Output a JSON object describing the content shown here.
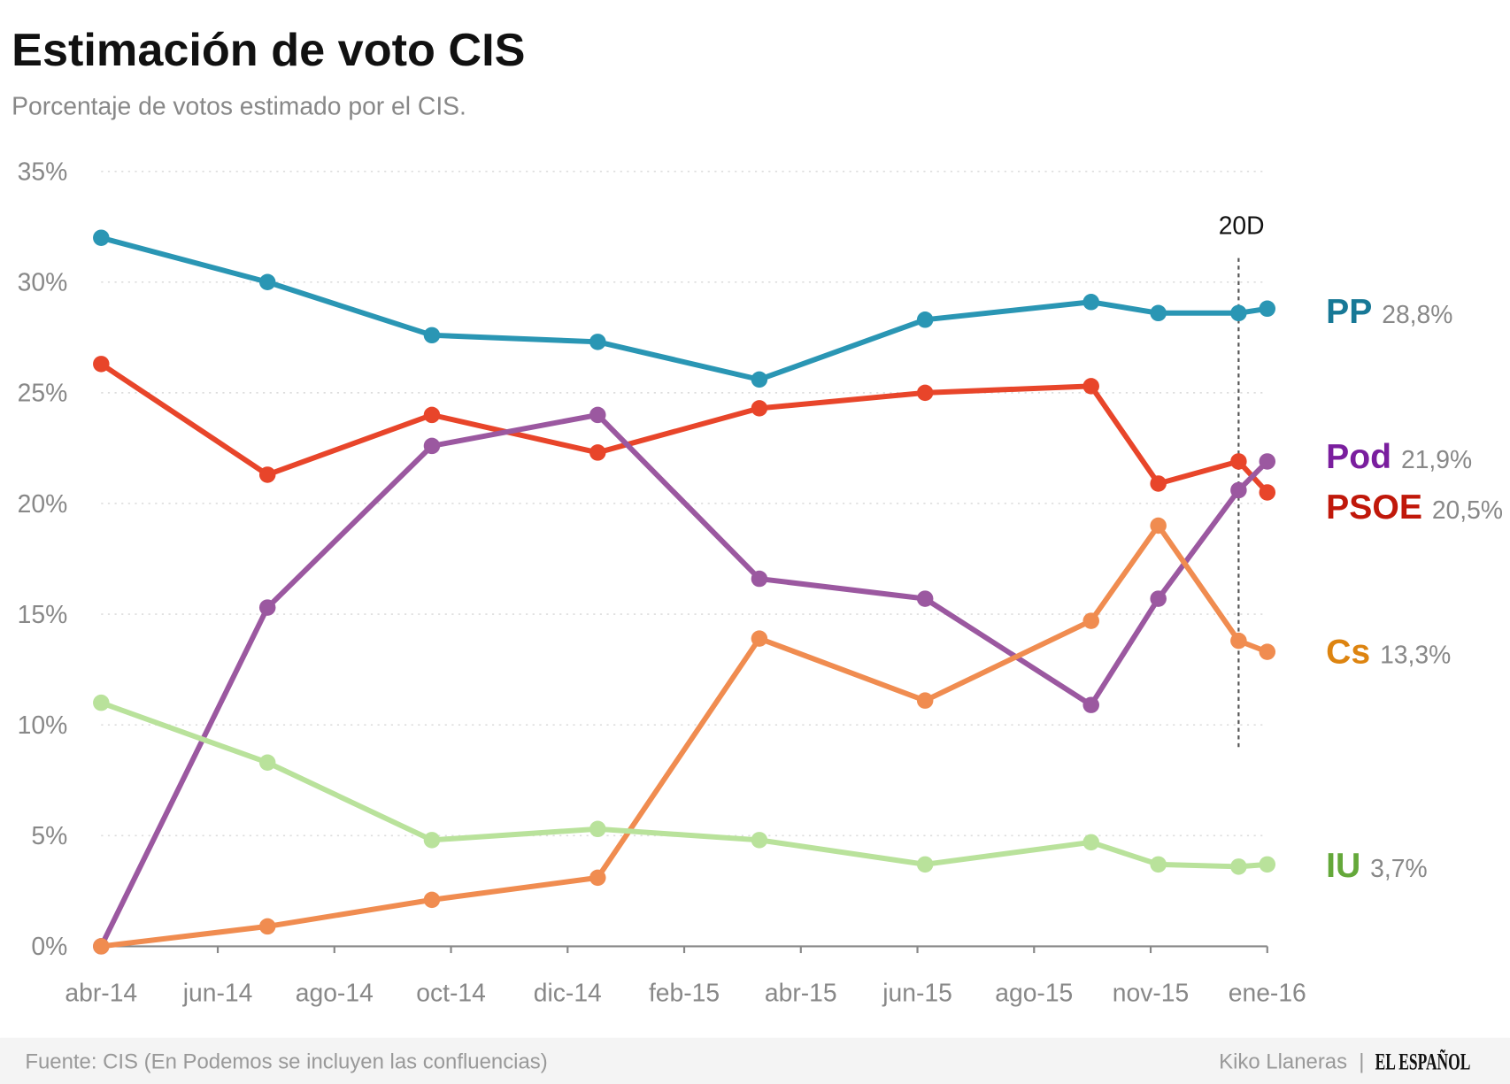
{
  "chart_data": {
    "type": "line",
    "title": "Estimación de voto CIS",
    "subtitle": "Porcentaje de votos estimado por el CIS.",
    "xlabel": "",
    "ylabel": "",
    "ylim": [
      0,
      35
    ],
    "y_ticks": [
      "0%",
      "5%",
      "10%",
      "15%",
      "20%",
      "25%",
      "30%",
      "35%"
    ],
    "y_tick_values": [
      0,
      5,
      10,
      15,
      20,
      25,
      30,
      35
    ],
    "grid": true,
    "legend": "right (end-of-line labels)",
    "x_ticks": [
      {
        "label": "abr-14",
        "date": "2014-04-01"
      },
      {
        "label": "jun-14",
        "date": "2014-06-01"
      },
      {
        "label": "ago-14",
        "date": "2014-08-01"
      },
      {
        "label": "oct-14",
        "date": "2014-10-01"
      },
      {
        "label": "dic-14",
        "date": "2014-12-01"
      },
      {
        "label": "feb-15",
        "date": "2015-02-01"
      },
      {
        "label": "abr-15",
        "date": "2015-04-01"
      },
      {
        "label": "jun-15",
        "date": "2015-06-01"
      },
      {
        "label": "ago-15",
        "date": "2015-08-01"
      },
      {
        "label": "nov-15",
        "date": "2015-11-01"
      },
      {
        "label": "ene-16",
        "date": "2016-01-01"
      }
    ],
    "x": [
      "2014-04-01",
      "2014-06-27",
      "2014-09-21",
      "2014-12-17",
      "2015-03-11",
      "2015-06-05",
      "2015-09-15",
      "2015-11-05",
      "2015-12-17",
      "2016-01-01"
    ],
    "series": [
      {
        "name": "PP",
        "final_label": "28,8%",
        "line_color": "#2a96b4",
        "label_color": "#177896",
        "values": [
          32.0,
          30.0,
          27.6,
          27.3,
          25.6,
          28.3,
          29.1,
          28.6,
          28.6,
          28.8
        ]
      },
      {
        "name": "PSOE",
        "final_label": "20,5%",
        "line_color": "#e8452a",
        "label_color": "#c0180a",
        "values": [
          26.3,
          21.3,
          24.0,
          22.3,
          24.3,
          25.0,
          25.3,
          20.9,
          21.9,
          20.5
        ]
      },
      {
        "name": "Pod",
        "final_label": "21,9%",
        "line_color": "#9b58a0",
        "label_color": "#7a1e9e",
        "values": [
          0.0,
          15.3,
          22.6,
          24.0,
          16.6,
          15.7,
          10.9,
          15.7,
          20.6,
          21.9
        ]
      },
      {
        "name": "Cs",
        "final_label": "13,3%",
        "line_color": "#f08c50",
        "label_color": "#dd8410",
        "values": [
          0.0,
          0.9,
          2.1,
          3.1,
          13.9,
          11.1,
          14.7,
          19.0,
          13.8,
          13.3
        ]
      },
      {
        "name": "IU",
        "final_label": "3,7%",
        "line_color": "#b9e29b",
        "label_color": "#64a83a",
        "values": [
          11.0,
          8.3,
          4.8,
          5.3,
          4.8,
          3.7,
          4.7,
          3.7,
          3.6,
          3.7
        ]
      }
    ],
    "annotations": [
      {
        "label": "20D",
        "date": "2015-12-17",
        "style": "dotted vertical line"
      }
    ]
  },
  "footer": {
    "source": "Fuente: CIS (En Podemos se incluyen las confluencias)",
    "author": "Kiko Llaneras",
    "separator": "|",
    "logo": "EL ESPAÑOL"
  }
}
